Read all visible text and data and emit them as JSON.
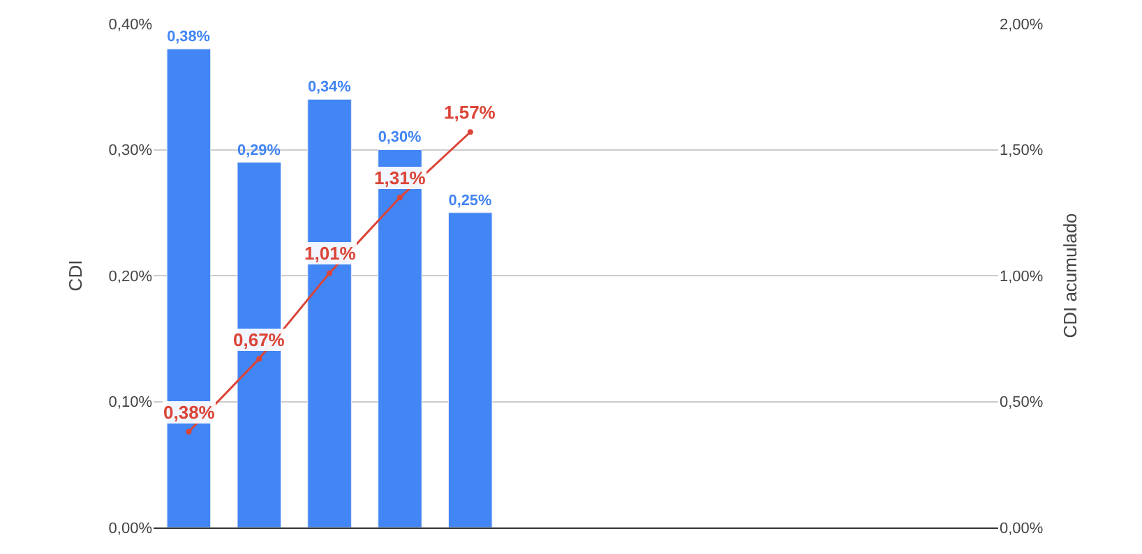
{
  "chart_data": {
    "type": "bar",
    "ylabel": "CDI",
    "y2label": "CDI acumulado",
    "categories": [
      null,
      null,
      null,
      null,
      null,
      null,
      null,
      null,
      null,
      null,
      null,
      null
    ],
    "series": [
      {
        "color": "#4285f4",
        "values": [
          0.38,
          0.29,
          0.34,
          0.3,
          0.25,
          null,
          null,
          null,
          null,
          null,
          null,
          null
        ],
        "value_labels": [
          "0,38%",
          "0,29%",
          "0,34%",
          "0,30%",
          "0,25%",
          null,
          null,
          null,
          null,
          null,
          null,
          null
        ]
      },
      {
        "type": "line",
        "axis": "y2",
        "color": "#db4437",
        "marker": "circle",
        "values": [
          0.38,
          0.67,
          1.01,
          1.31,
          1.57,
          null,
          null,
          null,
          null,
          null,
          null,
          null
        ],
        "value_labels": [
          "0,38%",
          "0,67%",
          "1,01%",
          "1,31%",
          "1,57%",
          null,
          null,
          null,
          null,
          null,
          null,
          null
        ]
      }
    ],
    "ylim": [
      0,
      0.4
    ],
    "yticks": [
      {
        "value": 0,
        "label": "0,00%"
      },
      {
        "value": 0.1,
        "label": "0,10%"
      },
      {
        "value": 0.2,
        "label": "0,20%"
      },
      {
        "value": 0.3,
        "label": "0,30%"
      },
      {
        "value": 0.4,
        "label": "0,40%"
      }
    ],
    "y2lim": [
      0,
      2
    ],
    "y2ticks": [
      {
        "value": 0,
        "label": "0,00%"
      },
      {
        "value": 0.5,
        "label": "0,50%"
      },
      {
        "value": 1,
        "label": "1,00%"
      },
      {
        "value": 1.5,
        "label": "1,50%"
      },
      {
        "value": 2,
        "label": "2,00%"
      }
    ],
    "grid": "y",
    "legend": false
  }
}
